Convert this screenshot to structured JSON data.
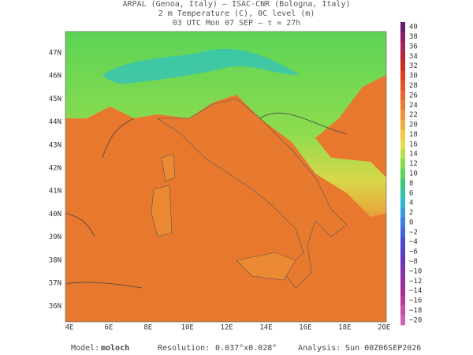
{
  "header": {
    "lines": [
      "ARPAL (Genoa, Italy)  –  ISAC-CNR (Bologna, Italy)",
      "2 m Temperature (C), 0C level (m)",
      "03 UTC Mon 07 SEP  –  τ = 27h"
    ]
  },
  "map": {
    "lat_labels": [
      "47N",
      "46N",
      "45N",
      "44N",
      "43N",
      "42N",
      "41N",
      "40N",
      "39N",
      "38N",
      "37N",
      "36N"
    ],
    "lon_labels": [
      "4E",
      "6E",
      "8E",
      "10E",
      "12E",
      "14E",
      "16E",
      "18E",
      "20E"
    ]
  },
  "colorbar": {
    "labels": [
      "40",
      "38",
      "36",
      "34",
      "32",
      "30",
      "28",
      "26",
      "24",
      "22",
      "20",
      "18",
      "16",
      "14",
      "12",
      "10",
      "8",
      "6",
      "4",
      "2",
      "0",
      "−2",
      "−4",
      "−6",
      "−8",
      "−10",
      "−12",
      "−14",
      "−16",
      "−18",
      "−20"
    ],
    "colors": [
      "#6a1b6e",
      "#8e1f6a",
      "#a8235a",
      "#b8262f",
      "#c92f22",
      "#d8401f",
      "#e35424",
      "#e8672a",
      "#ec7a30",
      "#f09236",
      "#f4ad3c",
      "#f4c845",
      "#e6dc4a",
      "#b8e04c",
      "#84dc4e",
      "#5cd456",
      "#3fc87a",
      "#33c4a8",
      "#2fb8d0",
      "#3a9ce0",
      "#3f7fe0",
      "#4464d8",
      "#4a4ccf",
      "#5a3ec4",
      "#6e35b8",
      "#8232ac",
      "#9630a0",
      "#a92e94",
      "#b83a9a",
      "#c64ca6",
      "#d062b2"
    ]
  },
  "footer": {
    "model_label": "Model:",
    "model": "moloch",
    "resolution_label": "Resolution:",
    "resolution": "0.037°x0.028°",
    "analysis_label": "Analysis:",
    "analysis": "Sun 00Z06SEP2026"
  }
}
